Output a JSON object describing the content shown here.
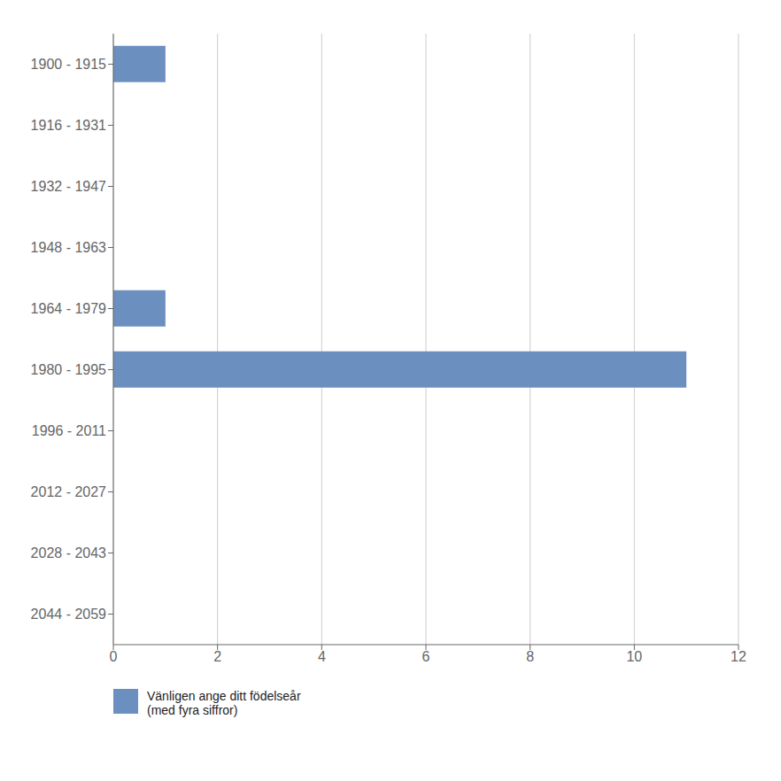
{
  "chart_data": {
    "type": "bar",
    "orientation": "horizontal",
    "categories": [
      "1900 - 1915",
      "1916 - 1931",
      "1932 - 1947",
      "1948 - 1963",
      "1964 - 1979",
      "1980 - 1995",
      "1996 - 2011",
      "2012 - 2027",
      "2028 - 2043",
      "2044 - 2059"
    ],
    "series": [
      {
        "name": "Vänligen ange ditt födelseår\n(med fyra siffror)",
        "color": "#6B8FBF",
        "values": [
          1,
          0,
          0,
          0,
          1,
          11,
          0,
          0,
          0,
          0
        ]
      }
    ],
    "xlim": [
      0,
      12
    ],
    "xticks": [
      0,
      2,
      4,
      6,
      8,
      10,
      12
    ],
    "grid": true,
    "legend": "lower left"
  }
}
